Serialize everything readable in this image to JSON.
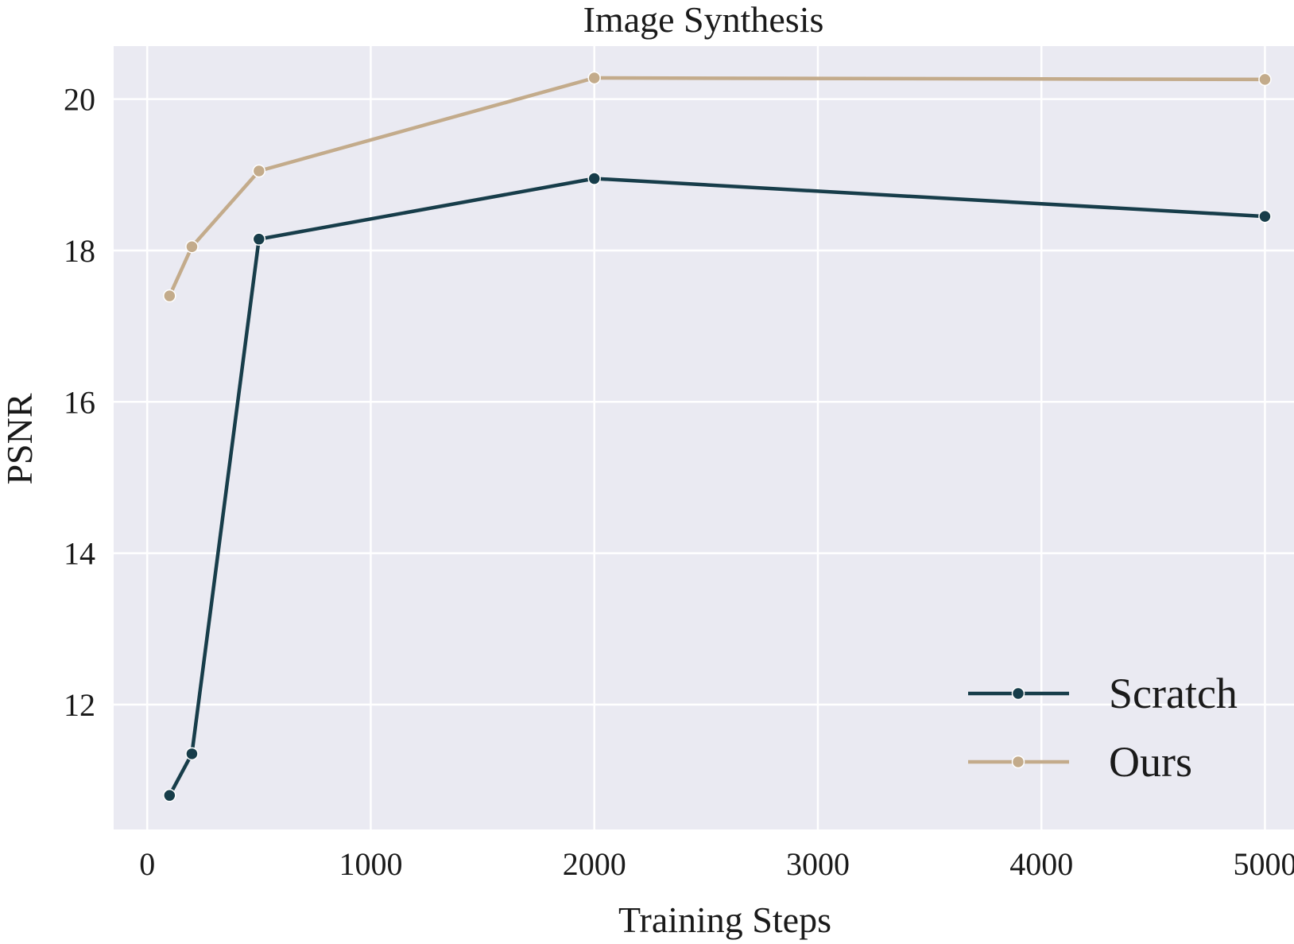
{
  "chart_data": {
    "type": "line",
    "title": "Image Synthesis",
    "xlabel": "Training Steps",
    "ylabel": "PSNR",
    "xlim": [
      -150,
      5130
    ],
    "ylim": [
      10.35,
      20.7
    ],
    "xticks": [
      0,
      1000,
      2000,
      3000,
      4000,
      5000
    ],
    "yticks": [
      12,
      14,
      16,
      18,
      20
    ],
    "grid": true,
    "legend_position": "bottom-right",
    "background": "#eaeaf2",
    "series": [
      {
        "name": "Scratch",
        "color": "#173d4a",
        "x": [
          100,
          200,
          500,
          2000,
          5000
        ],
        "y": [
          10.8,
          11.35,
          18.15,
          18.95,
          18.45
        ]
      },
      {
        "name": "Ours",
        "color": "#c3ab8b",
        "x": [
          100,
          200,
          500,
          2000,
          5000
        ],
        "y": [
          17.4,
          18.05,
          19.05,
          20.28,
          20.26
        ]
      }
    ]
  }
}
